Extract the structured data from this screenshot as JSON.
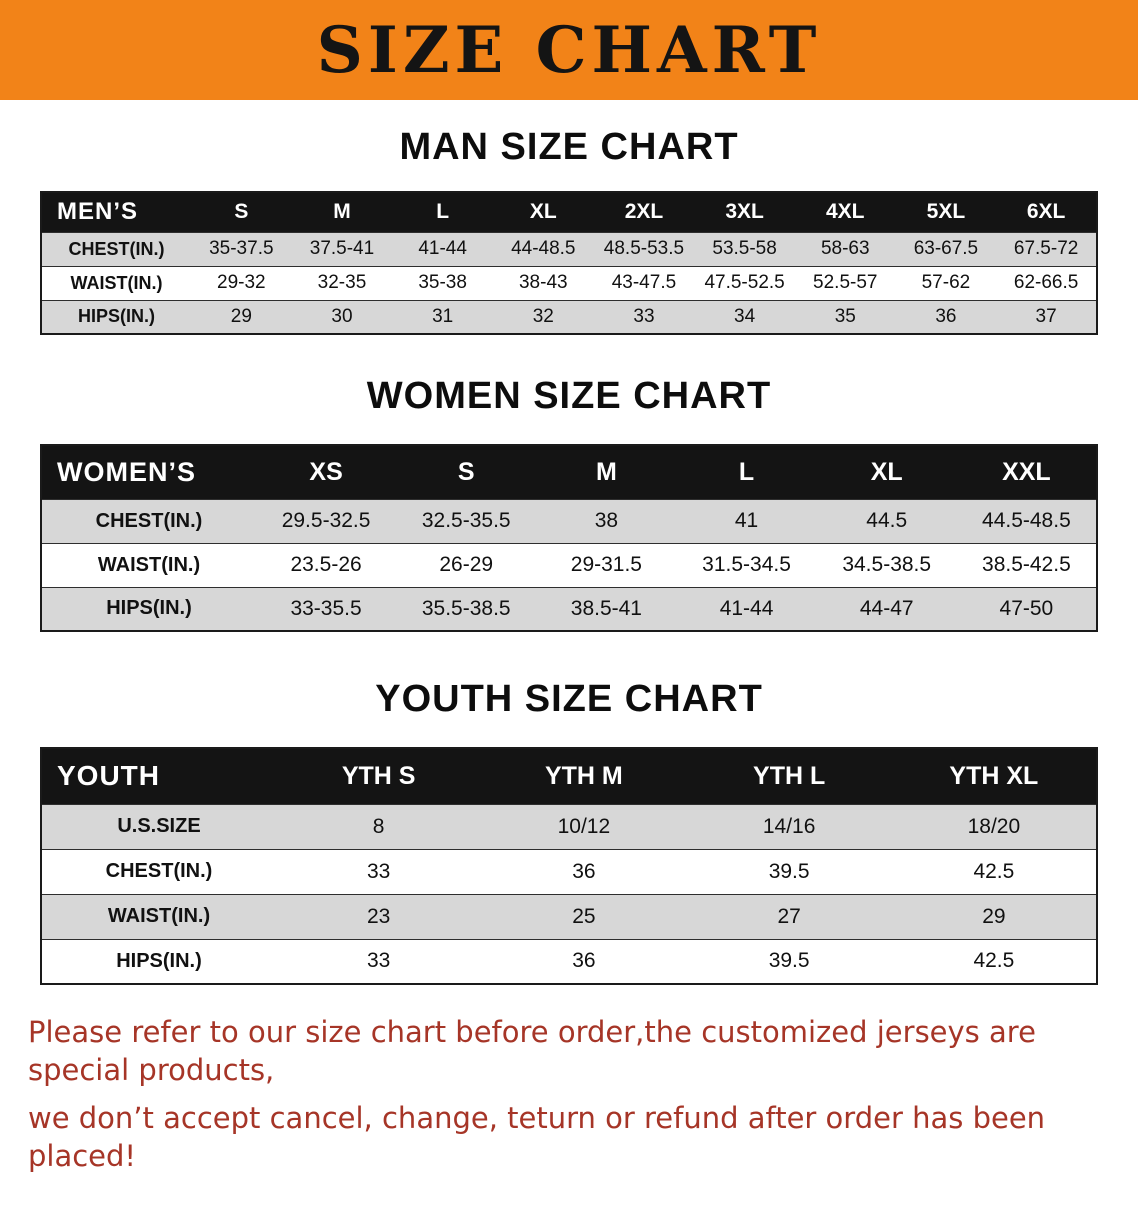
{
  "banner": {
    "title": "SIZE CHART"
  },
  "colors": {
    "banner_bg": "#f28318",
    "banner_text": "#141414",
    "table_header_bg": "#141414",
    "table_header_text": "#ffffff",
    "row_shade": "#d7d7d7",
    "border": "#1a1a1a",
    "note_text": "#a63527"
  },
  "sections": {
    "men": {
      "heading": "MAN SIZE CHART",
      "header": [
        "MEN’S",
        "S",
        "M",
        "L",
        "XL",
        "2XL",
        "3XL",
        "4XL",
        "5XL",
        "6XL"
      ],
      "rows": [
        [
          "CHEST(IN.)",
          "35-37.5",
          "37.5-41",
          "41-44",
          "44-48.5",
          "48.5-53.5",
          "53.5-58",
          "58-63",
          "63-67.5",
          "67.5-72"
        ],
        [
          "WAIST(IN.)",
          "29-32",
          "32-35",
          "35-38",
          "38-43",
          "43-47.5",
          "47.5-52.5",
          "52.5-57",
          "57-62",
          "62-66.5"
        ],
        [
          "HIPS(IN.)",
          "29",
          "30",
          "31",
          "32",
          "33",
          "34",
          "35",
          "36",
          "37"
        ]
      ]
    },
    "women": {
      "heading": "WOMEN SIZE CHART",
      "header": [
        "WOMEN’S",
        "XS",
        "S",
        "M",
        "L",
        "XL",
        "XXL"
      ],
      "rows": [
        [
          "CHEST(IN.)",
          "29.5-32.5",
          "32.5-35.5",
          "38",
          "41",
          "44.5",
          "44.5-48.5"
        ],
        [
          "WAIST(IN.)",
          "23.5-26",
          "26-29",
          "29-31.5",
          "31.5-34.5",
          "34.5-38.5",
          "38.5-42.5"
        ],
        [
          "HIPS(IN.)",
          "33-35.5",
          "35.5-38.5",
          "38.5-41",
          "41-44",
          "44-47",
          "47-50"
        ]
      ]
    },
    "youth": {
      "heading": "YOUTH SIZE CHART",
      "header": [
        "YOUTH",
        "YTH S",
        "YTH M",
        "YTH L",
        "YTH XL"
      ],
      "rows": [
        [
          "U.S.SIZE",
          "8",
          "10/12",
          "14/16",
          "18/20"
        ],
        [
          "CHEST(IN.)",
          "33",
          "36",
          "39.5",
          "42.5"
        ],
        [
          "WAIST(IN.)",
          "23",
          "25",
          "27",
          "29"
        ],
        [
          "HIPS(IN.)",
          "33",
          "36",
          "39.5",
          "42.5"
        ]
      ]
    }
  },
  "note": {
    "line1": "Please refer to our size chart before order,the customized jerseys are special products,",
    "line2": "we don’t accept cancel, change, teturn or refund after order has been placed!"
  }
}
